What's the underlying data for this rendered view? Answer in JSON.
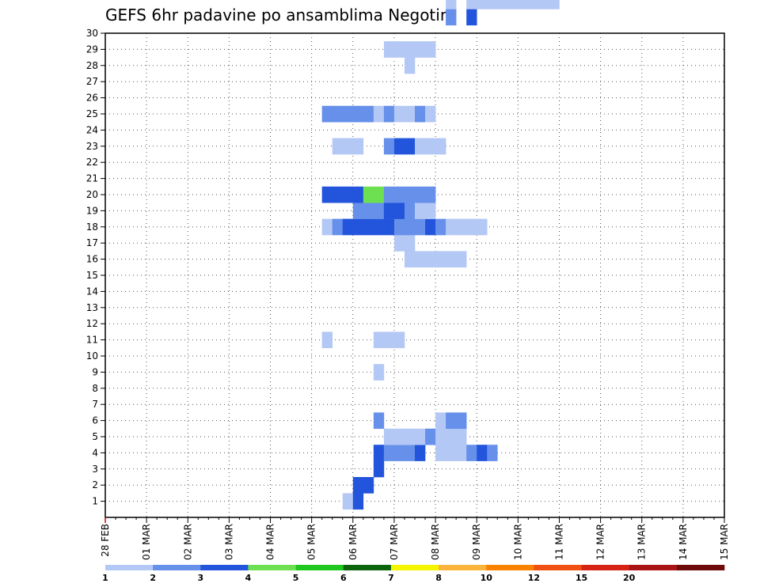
{
  "chart_data": {
    "type": "heatmap",
    "title": "GEFS 6hr padavine po ansamblima Negotin",
    "xlabel": "",
    "ylabel": "",
    "x_tick_labels": [
      "28 FEB",
      "01 MAR",
      "02 MAR",
      "03 MAR",
      "04 MAR",
      "05 MAR",
      "06 MAR",
      "07 MAR",
      "08 MAR",
      "09 MAR",
      "10 MAR",
      "11 MAR",
      "12 MAR",
      "13 MAR",
      "14 MAR",
      "15 MAR"
    ],
    "x_range_days": [
      0,
      15
    ],
    "y_range": [
      0,
      30
    ],
    "y_tick_labels": [
      "1",
      "2",
      "3",
      "4",
      "5",
      "6",
      "7",
      "8",
      "9",
      "10",
      "11",
      "12",
      "13",
      "14",
      "15",
      "16",
      "17",
      "18",
      "19",
      "20",
      "21",
      "22",
      "23",
      "24",
      "25",
      "26",
      "27",
      "28",
      "29",
      "30"
    ],
    "grid": true,
    "x_unit": "6-hour steps from 28 FEB 00Z (4 steps per day)",
    "y_unit": "ensemble member",
    "cells_format": "[step, member, category]",
    "cells": [
      [
        23,
        1,
        1
      ],
      [
        24,
        1,
        3
      ],
      [
        24,
        2,
        3
      ],
      [
        25,
        2,
        3
      ],
      [
        26,
        3,
        3
      ],
      [
        26,
        4,
        3
      ],
      [
        27,
        4,
        2
      ],
      [
        28,
        4,
        2
      ],
      [
        29,
        4,
        2
      ],
      [
        30,
        4,
        3
      ],
      [
        32,
        4,
        1
      ],
      [
        33,
        4,
        1
      ],
      [
        34,
        4,
        1
      ],
      [
        35,
        4,
        2
      ],
      [
        36,
        4,
        3
      ],
      [
        37,
        4,
        2
      ],
      [
        27,
        5,
        1
      ],
      [
        28,
        5,
        1
      ],
      [
        29,
        5,
        1
      ],
      [
        30,
        5,
        1
      ],
      [
        31,
        5,
        2
      ],
      [
        32,
        5,
        1
      ],
      [
        33,
        5,
        1
      ],
      [
        34,
        5,
        1
      ],
      [
        26,
        6,
        2
      ],
      [
        32,
        6,
        1
      ],
      [
        33,
        6,
        2
      ],
      [
        34,
        6,
        2
      ],
      [
        26,
        9,
        1
      ],
      [
        21,
        11,
        1
      ],
      [
        26,
        11,
        1
      ],
      [
        27,
        11,
        1
      ],
      [
        28,
        11,
        1
      ],
      [
        29,
        16,
        1
      ],
      [
        30,
        16,
        1
      ],
      [
        31,
        16,
        1
      ],
      [
        32,
        16,
        1
      ],
      [
        33,
        16,
        1
      ],
      [
        34,
        16,
        1
      ],
      [
        28,
        17,
        1
      ],
      [
        29,
        17,
        1
      ],
      [
        21,
        18,
        1
      ],
      [
        22,
        18,
        2
      ],
      [
        23,
        18,
        3
      ],
      [
        24,
        18,
        3
      ],
      [
        25,
        18,
        3
      ],
      [
        26,
        18,
        3
      ],
      [
        27,
        18,
        3
      ],
      [
        28,
        18,
        2
      ],
      [
        29,
        18,
        2
      ],
      [
        30,
        18,
        2
      ],
      [
        31,
        18,
        3
      ],
      [
        32,
        18,
        2
      ],
      [
        33,
        18,
        1
      ],
      [
        34,
        18,
        1
      ],
      [
        35,
        18,
        1
      ],
      [
        36,
        18,
        1
      ],
      [
        24,
        19,
        2
      ],
      [
        25,
        19,
        2
      ],
      [
        26,
        19,
        2
      ],
      [
        27,
        19,
        3
      ],
      [
        28,
        19,
        3
      ],
      [
        29,
        19,
        2
      ],
      [
        30,
        19,
        1
      ],
      [
        31,
        19,
        1
      ],
      [
        21,
        20,
        3
      ],
      [
        22,
        20,
        3
      ],
      [
        23,
        20,
        3
      ],
      [
        24,
        20,
        3
      ],
      [
        25,
        20,
        4
      ],
      [
        26,
        20,
        4
      ],
      [
        27,
        20,
        2
      ],
      [
        28,
        20,
        2
      ],
      [
        29,
        20,
        2
      ],
      [
        30,
        20,
        2
      ],
      [
        31,
        20,
        2
      ],
      [
        22,
        23,
        1
      ],
      [
        23,
        23,
        1
      ],
      [
        24,
        23,
        1
      ],
      [
        27,
        23,
        2
      ],
      [
        28,
        23,
        3
      ],
      [
        29,
        23,
        3
      ],
      [
        30,
        23,
        1
      ],
      [
        31,
        23,
        1
      ],
      [
        32,
        23,
        1
      ],
      [
        21,
        25,
        2
      ],
      [
        22,
        25,
        2
      ],
      [
        23,
        25,
        2
      ],
      [
        24,
        25,
        2
      ],
      [
        25,
        25,
        2
      ],
      [
        26,
        25,
        1
      ],
      [
        27,
        25,
        2
      ],
      [
        28,
        25,
        1
      ],
      [
        29,
        25,
        1
      ],
      [
        30,
        25,
        2
      ],
      [
        31,
        25,
        1
      ],
      [
        29,
        28,
        1
      ],
      [
        27,
        29,
        1
      ],
      [
        28,
        29,
        1
      ],
      [
        29,
        29,
        1
      ],
      [
        30,
        29,
        1
      ],
      [
        31,
        29,
        1
      ],
      [
        33,
        31,
        2
      ],
      [
        35,
        31,
        3
      ],
      [
        33,
        32,
        1
      ],
      [
        35,
        32,
        1
      ],
      [
        36,
        32,
        1
      ],
      [
        37,
        32,
        1
      ],
      [
        38,
        32,
        1
      ],
      [
        39,
        32,
        1
      ],
      [
        40,
        32,
        1
      ],
      [
        41,
        32,
        1
      ],
      [
        42,
        32,
        1
      ],
      [
        43,
        32,
        1
      ],
      [
        34,
        33,
        2
      ],
      [
        36,
        33,
        2
      ],
      [
        38,
        33,
        2
      ],
      [
        39,
        33,
        2
      ],
      [
        40,
        33,
        2
      ],
      [
        41,
        33,
        2
      ],
      [
        42,
        33,
        2
      ],
      [
        43,
        33,
        2
      ],
      [
        34,
        34,
        1
      ],
      [
        37,
        34,
        1
      ],
      [
        41,
        34,
        1
      ],
      [
        42,
        34,
        1
      ],
      [
        43,
        34,
        1
      ],
      [
        36,
        35,
        4
      ],
      [
        37,
        35,
        3
      ],
      [
        38,
        35,
        2
      ],
      [
        39,
        35,
        2
      ],
      [
        35,
        37,
        1
      ],
      [
        36,
        37,
        4
      ],
      [
        37,
        37,
        2
      ],
      [
        38,
        37,
        1
      ],
      [
        39,
        37,
        1
      ],
      [
        36,
        38,
        3
      ],
      [
        37,
        38,
        2
      ],
      [
        37,
        40,
        1
      ],
      [
        38,
        40,
        1
      ],
      [
        39,
        40,
        1
      ],
      [
        40,
        40,
        1
      ],
      [
        41,
        40,
        1
      ],
      [
        37,
        41,
        1
      ],
      [
        38,
        41,
        1
      ],
      [
        39,
        41,
        1
      ],
      [
        40,
        41,
        1
      ],
      [
        41,
        41,
        1
      ],
      [
        42,
        41,
        1
      ],
      [
        43,
        41,
        1
      ],
      [
        44,
        41,
        1
      ],
      [
        37,
        42,
        2
      ],
      [
        38,
        42,
        2
      ],
      [
        39,
        42,
        2
      ],
      [
        40,
        42,
        1
      ],
      [
        41,
        42,
        1
      ],
      [
        42,
        42,
        2
      ],
      [
        43,
        42,
        2
      ],
      [
        44,
        42,
        2
      ],
      [
        45,
        42,
        3
      ],
      [
        46,
        42,
        3
      ],
      [
        47,
        42,
        3
      ],
      [
        48,
        42,
        3
      ],
      [
        49,
        42,
        3
      ],
      [
        50,
        42,
        2
      ],
      [
        37,
        43,
        2
      ],
      [
        38,
        43,
        2
      ],
      [
        39,
        43,
        3
      ],
      [
        40,
        43,
        3
      ],
      [
        41,
        43,
        2
      ],
      [
        42,
        43,
        2
      ],
      [
        43,
        43,
        2
      ],
      [
        44,
        43,
        2
      ],
      [
        45,
        43,
        2
      ],
      [
        46,
        43,
        3
      ],
      [
        47,
        43,
        3
      ],
      [
        48,
        43,
        2
      ],
      [
        39,
        44,
        2
      ],
      [
        40,
        44,
        2
      ],
      [
        41,
        44,
        1
      ],
      [
        42,
        44,
        1
      ],
      [
        43,
        44,
        1
      ],
      [
        44,
        44,
        1
      ],
      [
        45,
        45,
        1
      ],
      [
        46,
        45,
        1
      ],
      [
        47,
        45,
        1
      ],
      [
        48,
        45,
        2
      ],
      [
        42,
        47,
        1
      ],
      [
        43,
        47,
        1
      ],
      [
        44,
        47,
        1
      ],
      [
        45,
        47,
        1
      ],
      [
        46,
        47,
        1
      ],
      [
        47,
        47,
        1
      ],
      [
        48,
        47,
        1
      ],
      [
        45,
        48,
        1
      ],
      [
        46,
        48,
        1
      ],
      [
        47,
        48,
        1
      ],
      [
        47,
        49,
        1
      ],
      [
        48,
        49,
        1
      ],
      [
        49,
        49,
        1
      ],
      [
        49,
        50,
        1
      ],
      [
        50,
        50,
        1
      ],
      [
        51,
        50,
        1
      ],
      [
        52,
        50,
        1
      ],
      [
        36,
        51,
        2
      ],
      [
        37,
        51,
        2
      ],
      [
        38,
        51,
        2
      ],
      [
        49,
        51,
        1
      ],
      [
        50,
        51,
        1
      ],
      [
        51,
        51,
        1
      ],
      [
        51,
        52,
        1
      ],
      [
        52,
        52,
        1
      ],
      [
        53,
        52,
        1
      ],
      [
        53,
        53,
        1
      ],
      [
        54,
        53,
        1
      ],
      [
        55,
        53,
        1
      ],
      [
        56,
        53,
        1
      ],
      [
        57,
        53,
        1
      ],
      [
        58,
        53,
        1
      ],
      [
        55,
        54,
        2
      ],
      [
        56,
        54,
        1
      ],
      [
        57,
        54,
        1
      ],
      [
        58,
        54,
        1
      ],
      [
        59,
        54,
        1
      ],
      [
        53,
        55,
        2
      ],
      [
        54,
        55,
        2
      ],
      [
        55,
        55,
        2
      ],
      [
        56,
        55,
        2
      ],
      [
        57,
        55,
        2
      ],
      [
        58,
        55,
        2
      ],
      [
        59,
        55,
        2
      ]
    ],
    "legend": [
      {
        "label": "1",
        "color": "#b4c8f5"
      },
      {
        "label": "2",
        "color": "#6690ea"
      },
      {
        "label": "3",
        "color": "#2254dc"
      },
      {
        "label": "4",
        "color": "#6de052"
      },
      {
        "label": "5",
        "color": "#1ec81e"
      },
      {
        "label": "6",
        "color": "#0c640c"
      },
      {
        "label": "7",
        "color": "#f5f500"
      },
      {
        "label": "8",
        "color": "#fab43c"
      },
      {
        "label": "10",
        "color": "#fa8200"
      },
      {
        "label": "12",
        "color": "#f05014"
      },
      {
        "label": "15",
        "color": "#d72314"
      },
      {
        "label": "20",
        "color": "#aa1414"
      },
      {
        "label": "",
        "color": "#6e0a0a"
      }
    ]
  }
}
